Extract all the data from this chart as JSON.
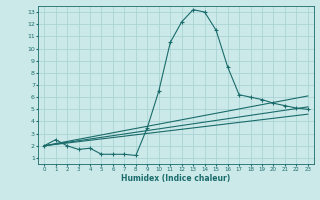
{
  "xlabel": "Humidex (Indice chaleur)",
  "ylabel": "",
  "bg_color": "#cce9e9",
  "grid_color": "#aad4d4",
  "line_color": "#1a6b6b",
  "xlim": [
    -0.5,
    23.5
  ],
  "ylim": [
    0.5,
    13.5
  ],
  "xticks": [
    0,
    1,
    2,
    3,
    4,
    5,
    6,
    7,
    8,
    9,
    10,
    11,
    12,
    13,
    14,
    15,
    16,
    17,
    18,
    19,
    20,
    21,
    22,
    23
  ],
  "yticks": [
    1,
    2,
    3,
    4,
    5,
    6,
    7,
    8,
    9,
    10,
    11,
    12,
    13
  ],
  "series": [
    {
      "x": [
        0,
        1,
        2,
        3,
        4,
        5,
        6,
        7,
        8,
        9,
        10,
        11,
        12,
        13,
        14,
        15,
        16,
        17,
        18,
        19,
        20,
        21,
        22,
        23
      ],
      "y": [
        2.0,
        2.5,
        2.0,
        1.7,
        1.8,
        1.3,
        1.3,
        1.3,
        1.2,
        3.5,
        6.5,
        10.5,
        12.2,
        13.2,
        13.0,
        11.5,
        8.5,
        6.2,
        6.0,
        5.8,
        5.5,
        5.3,
        5.1,
        5.0
      ],
      "marker": true
    },
    {
      "x": [
        0,
        23
      ],
      "y": [
        2.0,
        6.1
      ],
      "marker": false
    },
    {
      "x": [
        0,
        23
      ],
      "y": [
        2.0,
        5.2
      ],
      "marker": false
    },
    {
      "x": [
        0,
        23
      ],
      "y": [
        2.0,
        4.6
      ],
      "marker": false
    }
  ]
}
